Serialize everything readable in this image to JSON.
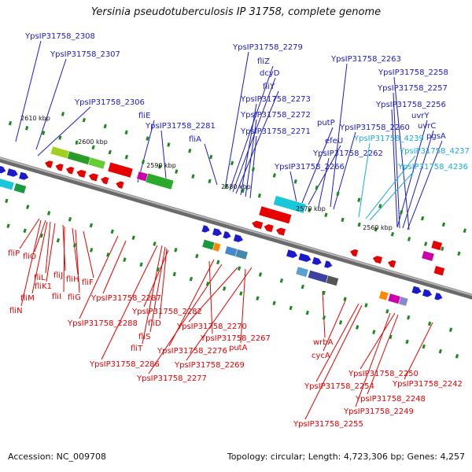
{
  "title": "Yersinia pseudotuberculosis IP 31758, complete genome",
  "footer": {
    "accession": "Accession: NC_009708",
    "summary": "Topology: circular; Length: 4,723,306 bp; Genes: 4,257"
  },
  "colors": {
    "forward": "#1a1acc",
    "reverse": "#e60000",
    "forward_alt": "#19aade",
    "backbone": "#8a8a8a",
    "tick": "#1e8a1e"
  },
  "ticks": [
    {
      "label": "2610 kbp",
      "pos": 2610
    },
    {
      "label": "2600 kbp",
      "pos": 2600
    },
    {
      "label": "2590 kbp",
      "pos": 2590
    },
    {
      "label": "2580 kbp",
      "pos": 2580
    },
    {
      "label": "2570 kbp",
      "pos": 2570
    },
    {
      "label": "2560 kbp",
      "pos": 2560
    }
  ],
  "forward_labels": [
    {
      "text": "YpsIP31758_2308",
      "pos": 2611
    },
    {
      "text": "YpsIP31758_2307",
      "pos": 2609
    },
    {
      "text": "YpsIP31758_2306",
      "pos": 2607
    },
    {
      "text": "fliE",
      "pos": 2597
    },
    {
      "text": "YpsIP31758_2281",
      "pos": 2583
    },
    {
      "text": "fliA",
      "pos": 2582
    },
    {
      "text": "YpsIP31758_2279",
      "pos": 2581
    },
    {
      "text": "fliZ",
      "pos": 2580.5
    },
    {
      "text": "dcyD",
      "pos": 2580
    },
    {
      "text": "fliY",
      "pos": 2579.5
    },
    {
      "text": "YpsIP31758_2273",
      "pos": 2579
    },
    {
      "text": "YpsIP31758_2272",
      "pos": 2578.5
    },
    {
      "text": "YpsIP31758_2271",
      "pos": 2578
    },
    {
      "text": "YpsIP31758_2263",
      "pos": 2569
    },
    {
      "text": "putP",
      "pos": 2570
    },
    {
      "text": "efeU",
      "pos": 2569.5
    },
    {
      "text": "YpsIP31758_2262",
      "pos": 2569
    },
    {
      "text": "YpsIP31758_2266",
      "pos": 2571
    },
    {
      "text": "YpsIP31758_2260",
      "pos": 2567
    },
    {
      "text": "YpsIP31758_2258",
      "pos": 2563
    },
    {
      "text": "YpsIP31758_2257",
      "pos": 2562.5
    },
    {
      "text": "YpsIP31758_2256",
      "pos": 2562
    },
    {
      "text": "uvrY",
      "pos": 2561.5
    },
    {
      "text": "uvrC",
      "pos": 2561
    },
    {
      "text": "pgsA",
      "pos": 2560.5
    },
    {
      "text": "YpsIP31758_4239",
      "pos": 2563
    },
    {
      "text": "YpsIP31758_4237",
      "pos": 2561
    },
    {
      "text": "YpsIP31758_4236",
      "pos": 2560
    }
  ],
  "reverse_labels": [
    {
      "text": "fliP",
      "pos": 2605
    },
    {
      "text": "fliO",
      "pos": 2604.5
    },
    {
      "text": "fliL",
      "pos": 2604
    },
    {
      "text": "fliK1",
      "pos": 2603.5
    },
    {
      "text": "fliM",
      "pos": 2604.5
    },
    {
      "text": "fliN",
      "pos": 2605
    },
    {
      "text": "fliJ",
      "pos": 2603
    },
    {
      "text": "fliI",
      "pos": 2602.5
    },
    {
      "text": "fliH",
      "pos": 2602
    },
    {
      "text": "fliG",
      "pos": 2601.5
    },
    {
      "text": "fliF",
      "pos": 2601
    },
    {
      "text": "YpsIP31758_2287",
      "pos": 2593
    },
    {
      "text": "YpsIP31758_2288",
      "pos": 2594
    },
    {
      "text": "YpsIP31758_2282",
      "pos": 2590
    },
    {
      "text": "fliD",
      "pos": 2590.5
    },
    {
      "text": "fliS",
      "pos": 2591
    },
    {
      "text": "fliT",
      "pos": 2591.5
    },
    {
      "text": "YpsIP31758_2286",
      "pos": 2592
    },
    {
      "text": "YpsIP31758_2270",
      "pos": 2579
    },
    {
      "text": "YpsIP31758_2276",
      "pos": 2582
    },
    {
      "text": "putA",
      "pos": 2578
    },
    {
      "text": "YpsIP31758_2267",
      "pos": 2576
    },
    {
      "text": "YpsIP31758_2269",
      "pos": 2580
    },
    {
      "text": "YpsIP31758_2277",
      "pos": 2583
    },
    {
      "text": "wrbA",
      "pos": 2569
    },
    {
      "text": "cycA",
      "pos": 2568
    },
    {
      "text": "YpsIP31758_2250",
      "pos": 2562
    },
    {
      "text": "YpsIP31758_2254",
      "pos": 2564
    },
    {
      "text": "YpsIP31758_2242",
      "pos": 2558
    },
    {
      "text": "YpsIP31758_2248",
      "pos": 2561
    },
    {
      "text": "YpsIP31758_2249",
      "pos": 2562
    },
    {
      "text": "YpsIP31758_2255",
      "pos": 2565
    }
  ]
}
